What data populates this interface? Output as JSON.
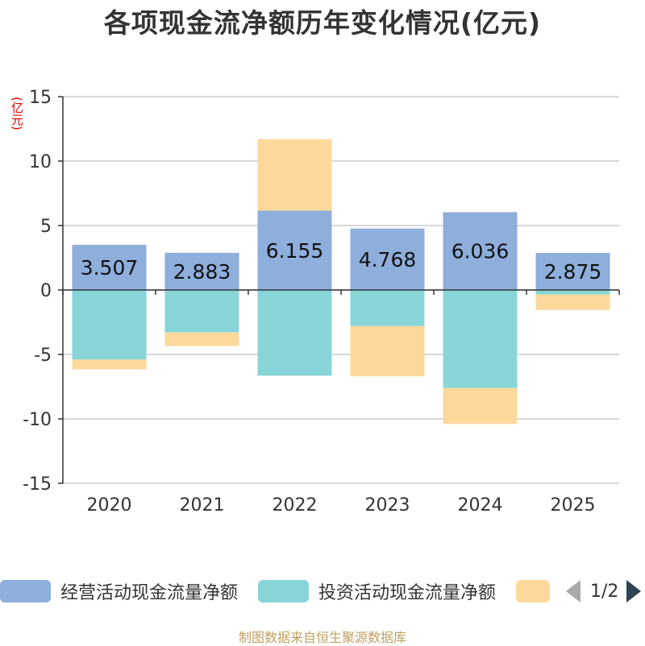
{
  "chart_data": {
    "type": "bar",
    "stacked": true,
    "title": "各项现金流净额历年变化情况(亿元)",
    "ylabel": "(亿元)",
    "categories": [
      "2020",
      "2021",
      "2022",
      "2023",
      "2024",
      "2025"
    ],
    "ylim": [
      -15,
      15
    ],
    "yticks": [
      15,
      10,
      5,
      0,
      -5,
      -10,
      -15
    ],
    "series": [
      {
        "name": "经营活动现金流量净额",
        "color": "#8eaedb",
        "values": [
          3.507,
          2.883,
          6.155,
          4.768,
          6.036,
          2.875
        ],
        "labels": [
          "3.507",
          "2.883",
          "6.155",
          "4.768",
          "6.036",
          "2.875"
        ]
      },
      {
        "name": "投资活动现金流量净额",
        "color": "#88d5d8",
        "values": [
          -5.4,
          -3.3,
          -6.65,
          -2.8,
          -7.6,
          -0.35
        ]
      },
      {
        "name": "",
        "color": "#fcd99b",
        "values": [
          -0.75,
          -1.05,
          5.55,
          -3.9,
          -2.8,
          -1.2
        ]
      }
    ],
    "grid": true,
    "legend_position": "bottom"
  },
  "legend": {
    "items": [
      {
        "label": "经营活动现金流量净额",
        "color": "#8eaedb"
      },
      {
        "label": "投资活动现金流量净额",
        "color": "#88d5d8"
      },
      {
        "label": "",
        "color": "#fcd99b"
      }
    ],
    "page": "1/2"
  },
  "footer": "制图数据来自恒生聚源数据库"
}
